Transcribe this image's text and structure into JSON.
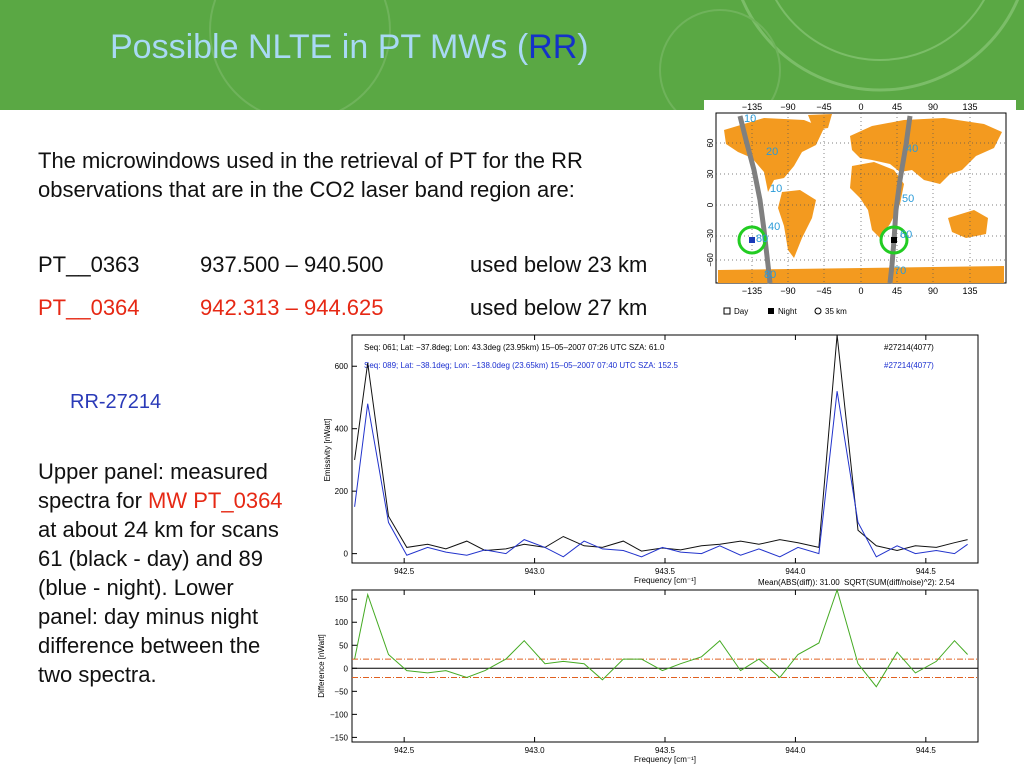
{
  "slide": {
    "title_main": "Possible NLTE in PT MWs (",
    "title_highlight": "RR",
    "title_end": ")",
    "intro": "The microwindows used in the retrieval of PT for the RR observations that are in the CO2 laser band region are:",
    "mw_rows": [
      {
        "name": "PT__0363",
        "range": "937.500 – 940.500",
        "usage": "used below 23 km",
        "color": "#111111"
      },
      {
        "name": "PT__0364",
        "range": "942.313 – 944.625",
        "usage": "used below 27 km",
        "color": "#e62814"
      }
    ],
    "orbit_label": "RR-27214",
    "desc_part1": "Upper panel: measured spectra for ",
    "desc_highlight": "MW PT_0364",
    "desc_part2": " at about 24 km for scans 61 (black - day) and 89 (blue - night). Lower panel: day minus night difference between the two spectra."
  },
  "map": {
    "lon_ticks": [
      "−135",
      "−90",
      "−45",
      "0",
      "45",
      "90",
      "135"
    ],
    "lat_ticks": [
      "60",
      "30",
      "0",
      "−30",
      "−60"
    ],
    "track_labels_left": [
      "10",
      "20",
      "10",
      "40",
      "80",
      "80"
    ],
    "track_labels_right": [
      "40",
      "50",
      "60",
      "70"
    ],
    "legend": {
      "day": "Day",
      "night": "Night",
      "km": "35 km"
    },
    "colors": {
      "land": "#f39a1f",
      "track": "#808080",
      "circle": "#22cc22"
    }
  },
  "upper_panel": {
    "header_black": "Seq: 061; Lat: −37.8deg; Lon: 43.3deg (23.95km) 15–05–2007 07:26 UTC SZA: 61.0",
    "header_blue": "Seq: 089; Lat: −38.1deg; Lon: −138.0deg (23.65km) 15–05–2007 07:40 UTC SZA: 152.5",
    "id_black": "#27214(4077)",
    "id_blue": "#27214(4077)",
    "ylabel": "Emissivity [nWatt]",
    "xlabel": "Frequency [cm⁻¹]",
    "stats_left": "Mean(ABS(diff)): 31.00",
    "stats_right": "SQRT(SUM(diff/noise)^2): 2.54"
  },
  "lower_panel": {
    "ylabel": "Difference [nWatt]",
    "xlabel": "Frequency [cm⁻¹]"
  },
  "chart_data": [
    {
      "type": "line",
      "ylabel": "Emissivity [nWatt]",
      "xlabel": "Frequency [cm⁻¹]",
      "xlim": [
        942.3,
        944.7
      ],
      "ylim": [
        -30,
        700
      ],
      "xticks": [
        "942.5",
        "943.0",
        "943.5",
        "944.0",
        "944.5"
      ],
      "yticks": [
        "0",
        "200",
        "400",
        "600"
      ],
      "x": [
        942.31,
        942.36,
        942.44,
        942.51,
        942.59,
        942.66,
        942.74,
        942.81,
        942.89,
        942.96,
        943.04,
        943.11,
        943.19,
        943.26,
        943.34,
        943.41,
        943.49,
        943.56,
        943.64,
        943.71,
        943.79,
        943.86,
        943.94,
        944.01,
        944.09,
        944.16,
        944.24,
        944.31,
        944.39,
        944.46,
        944.54,
        944.61,
        944.66
      ],
      "series": [
        {
          "name": "Seq: 061",
          "color": "#111111",
          "values": [
            300,
            610,
            120,
            20,
            30,
            15,
            40,
            10,
            15,
            30,
            20,
            55,
            25,
            20,
            40,
            8,
            18,
            12,
            25,
            30,
            40,
            30,
            45,
            35,
            20,
            700,
            75,
            25,
            10,
            25,
            20,
            35,
            45
          ]
        },
        {
          "name": "Seq: 089",
          "color": "#2233cc",
          "values": [
            150,
            480,
            100,
            -5,
            20,
            5,
            -5,
            12,
            0,
            45,
            20,
            -10,
            40,
            15,
            10,
            -10,
            20,
            5,
            0,
            25,
            -5,
            15,
            -10,
            20,
            0,
            520,
            100,
            -10,
            25,
            0,
            10,
            0,
            30
          ]
        }
      ]
    },
    {
      "type": "line",
      "ylabel": "Difference [nWatt]",
      "xlabel": "Frequency [cm⁻¹]",
      "xlim": [
        942.3,
        944.7
      ],
      "ylim": [
        -160,
        170
      ],
      "xticks": [
        "942.5",
        "943.0",
        "943.5",
        "944.0",
        "944.5"
      ],
      "yticks": [
        "150",
        "100",
        "50",
        "0",
        "−50",
        "−100",
        "−150"
      ],
      "x": [
        942.31,
        942.36,
        942.44,
        942.51,
        942.59,
        942.66,
        942.74,
        942.81,
        942.89,
        942.96,
        943.04,
        943.11,
        943.19,
        943.26,
        943.34,
        943.41,
        943.49,
        943.56,
        943.64,
        943.71,
        943.79,
        943.86,
        943.94,
        944.01,
        944.09,
        944.16,
        944.24,
        944.31,
        944.39,
        944.46,
        944.54,
        944.61,
        944.66
      ],
      "reference_lines": [
        0,
        20,
        -20
      ],
      "series": [
        {
          "name": "",
          "color": "#44aa22",
          "values": [
            20,
            160,
            30,
            -5,
            -10,
            -5,
            -20,
            -5,
            20,
            60,
            10,
            15,
            10,
            -25,
            20,
            20,
            -5,
            10,
            25,
            60,
            -5,
            20,
            -20,
            30,
            55,
            170,
            10,
            -40,
            35,
            -10,
            15,
            60,
            30
          ]
        }
      ]
    }
  ]
}
